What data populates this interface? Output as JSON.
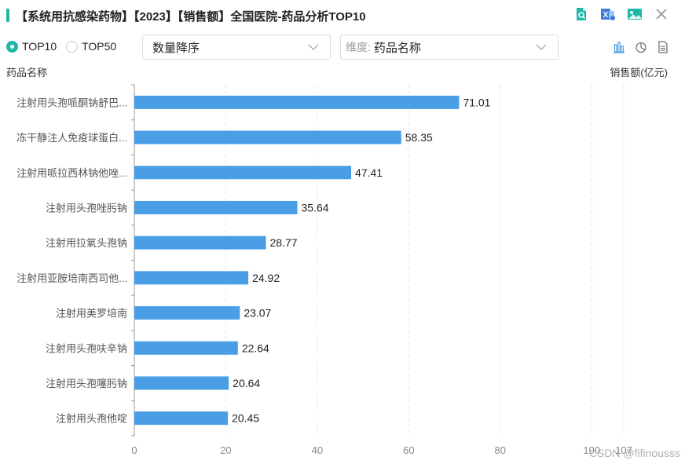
{
  "title": "【系统用抗感染药物】【2023】【销售额】全国医院-药品分析TOP10",
  "toolbar": {
    "icons": [
      "search-document-icon",
      "excel-export-icon",
      "image-export-icon",
      "close-icon"
    ]
  },
  "controls": {
    "radios": [
      {
        "label": "TOP10",
        "checked": true
      },
      {
        "label": "TOP50",
        "checked": false
      }
    ],
    "sort_select": "数量降序",
    "dimension_prefix": "维度:",
    "dimension_value": "药品名称",
    "view_icons": [
      "bar-chart-icon",
      "pie-chart-icon",
      "table-icon"
    ]
  },
  "axis_captions": {
    "left": "药品名称",
    "right": "销售额(亿元)"
  },
  "colors": {
    "accent": "#1fb7a6",
    "bar": "#4a9ee6"
  },
  "chart_data": {
    "type": "bar",
    "orientation": "horizontal",
    "categories": [
      "注射用头孢哌酮钠舒巴...",
      "冻干静注人免疫球蛋白...",
      "注射用哌拉西林钠他唑...",
      "注射用头孢唑肟钠",
      "注射用拉氧头孢钠",
      "注射用亚胺培南西司他...",
      "注射用美罗培南",
      "注射用头孢呋辛钠",
      "注射用头孢噻肟钠",
      "注射用头孢他啶"
    ],
    "values": [
      71.01,
      58.35,
      47.41,
      35.64,
      28.77,
      24.92,
      23.07,
      22.64,
      20.64,
      20.45
    ],
    "value_labels": [
      "71.01",
      "58.35",
      "47.41",
      "35.64",
      "28.77",
      "24.92",
      "23.07",
      "22.64",
      "20.64",
      "20.45"
    ],
    "xticks": [
      0,
      20,
      40,
      60,
      80,
      100,
      107
    ],
    "xlim": [
      0,
      107
    ],
    "grid": "vertical-dashed"
  },
  "watermark": "CSDN @fifinousss"
}
